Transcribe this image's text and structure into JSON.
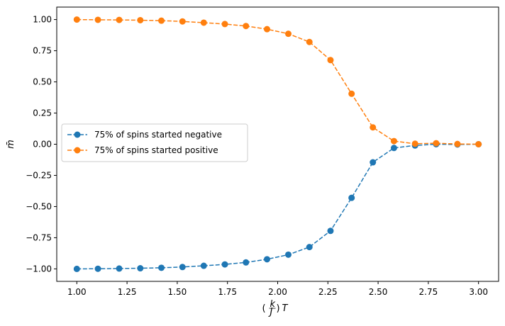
{
  "chart_data": {
    "type": "line",
    "xlabel_parts": {
      "frac_num": "k",
      "frac_den": "J",
      "var": "T"
    },
    "ylabel": "m̄",
    "xlim": [
      0.9,
      3.1
    ],
    "ylim": [
      -1.1,
      1.1
    ],
    "x_ticks": [
      "1.00",
      "1.25",
      "1.50",
      "1.75",
      "2.00",
      "2.25",
      "2.50",
      "2.75",
      "3.00"
    ],
    "y_ticks": [
      "−1.00",
      "−0.75",
      "−0.50",
      "−0.25",
      "0.00",
      "0.25",
      "0.50",
      "0.75",
      "1.00"
    ],
    "x": [
      1.0,
      1.105,
      1.211,
      1.316,
      1.421,
      1.526,
      1.632,
      1.737,
      1.842,
      1.947,
      2.053,
      2.158,
      2.263,
      2.368,
      2.474,
      2.579,
      2.684,
      2.789,
      2.895,
      3.0
    ],
    "series": [
      {
        "name": "75% of spins started negative",
        "color": "#1f77b4",
        "values": [
          -1.0,
          -0.999,
          -0.997,
          -0.995,
          -0.991,
          -0.985,
          -0.975,
          -0.964,
          -0.948,
          -0.923,
          -0.886,
          -0.825,
          -0.695,
          -0.43,
          -0.145,
          -0.03,
          -0.01,
          0.0,
          -0.002,
          0.0
        ]
      },
      {
        "name": "75% of spins started positive",
        "color": "#ff7f0e",
        "values": [
          1.0,
          0.998,
          0.997,
          0.995,
          0.991,
          0.985,
          0.975,
          0.964,
          0.948,
          0.923,
          0.886,
          0.82,
          0.675,
          0.405,
          0.135,
          0.025,
          0.004,
          0.008,
          0.002,
          0.0
        ]
      }
    ],
    "legend": {
      "placement": "center-left"
    },
    "grid": false,
    "line_style": "dashed",
    "marker": "circle"
  }
}
